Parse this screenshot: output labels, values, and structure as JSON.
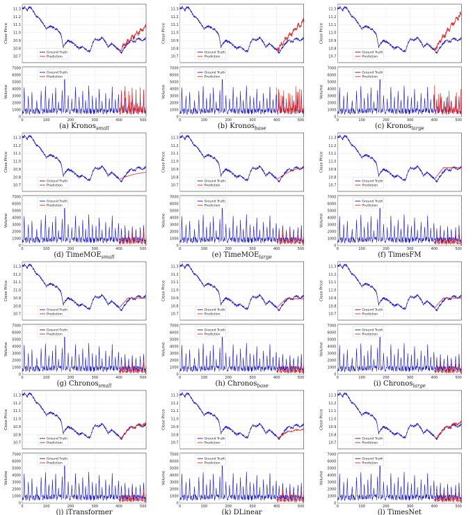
{
  "chart_data": {
    "type": "line",
    "xlim": [
      0,
      512
    ],
    "x_ticks": [
      0,
      100,
      200,
      300,
      400,
      500
    ],
    "prediction_start": 400,
    "price_panel": {
      "ylabel": "Close Price",
      "yticks": [
        10.7,
        10.8,
        10.9,
        11.0,
        11.1,
        11.2,
        11.3
      ],
      "ylim": [
        10.62,
        11.36
      ],
      "legend": [
        "Ground Truth",
        "Prediction"
      ],
      "ground_truth_keypoints": [
        [
          0,
          11.3
        ],
        [
          10,
          11.32
        ],
        [
          20,
          11.28
        ],
        [
          30,
          11.33
        ],
        [
          40,
          11.3
        ],
        [
          55,
          11.22
        ],
        [
          70,
          11.18
        ],
        [
          85,
          11.12
        ],
        [
          100,
          11.05
        ],
        [
          115,
          11.08
        ],
        [
          130,
          11.06
        ],
        [
          145,
          11.04
        ],
        [
          160,
          10.98
        ],
        [
          170,
          10.82
        ],
        [
          180,
          10.87
        ],
        [
          190,
          10.9
        ],
        [
          205,
          10.88
        ],
        [
          220,
          10.84
        ],
        [
          235,
          10.8
        ],
        [
          250,
          10.82
        ],
        [
          265,
          10.78
        ],
        [
          280,
          10.76
        ],
        [
          290,
          10.86
        ],
        [
          300,
          10.92
        ],
        [
          315,
          10.9
        ],
        [
          330,
          10.94
        ],
        [
          345,
          10.88
        ],
        [
          355,
          10.82
        ],
        [
          370,
          10.86
        ],
        [
          385,
          10.82
        ],
        [
          400,
          10.78
        ],
        [
          410,
          10.74
        ],
        [
          420,
          10.8
        ],
        [
          435,
          10.86
        ],
        [
          450,
          10.9
        ],
        [
          465,
          10.88
        ],
        [
          480,
          10.93
        ],
        [
          495,
          10.9
        ],
        [
          512,
          10.93
        ]
      ]
    },
    "volume_panel": {
      "ylabel": "Volume",
      "yticks": [
        0,
        1000,
        2000,
        3000,
        4000,
        5000,
        6000,
        7000
      ],
      "ylim": [
        0,
        7200
      ],
      "legend": [
        "Ground Truth",
        "Prediction"
      ],
      "spike_positions": [
        8,
        25,
        40,
        60,
        78,
        96,
        110,
        125,
        138,
        150,
        165,
        175,
        190,
        205,
        220,
        235,
        250,
        262,
        275,
        290,
        305,
        318,
        330,
        345,
        360,
        372,
        385,
        398,
        410,
        425,
        440,
        455,
        470,
        488,
        502
      ],
      "spike_heights": [
        4200,
        3000,
        3500,
        2500,
        3800,
        4400,
        2800,
        3300,
        4100,
        2200,
        3900,
        6700,
        3100,
        2600,
        4400,
        2900,
        3600,
        2400,
        4600,
        3000,
        2700,
        3900,
        2200,
        3500,
        2800,
        4200,
        2600,
        3300,
        2400,
        3000,
        2200,
        2800,
        2500,
        2700,
        2900
      ],
      "baseline": 1000
    },
    "models": [
      {
        "name_base": "Kronos",
        "name_sub": "small",
        "id": "a",
        "price_pred_end": 11.08,
        "pred_shape": "up-volatile",
        "volume_pred_scale": 1.2
      },
      {
        "name_base": "Kronos",
        "name_sub": "base",
        "id": "b",
        "price_pred_end": 11.15,
        "pred_shape": "up-volatile",
        "volume_pred_scale": 1.1
      },
      {
        "name_base": "Kronos",
        "name_sub": "large",
        "id": "c",
        "price_pred_end": 11.25,
        "pred_shape": "up-volatile",
        "volume_pred_scale": 1.0
      },
      {
        "name_base": "TimeMOE",
        "name_sub": "small",
        "id": "d",
        "price_pred_end": 10.86,
        "pred_shape": "smooth",
        "volume_pred_scale": 0.6
      },
      {
        "name_base": "TimeMOE",
        "name_sub": "large",
        "id": "e",
        "price_pred_end": 10.92,
        "pred_shape": "smooth",
        "volume_pred_scale": 0.6
      },
      {
        "name_base": "TimesFM",
        "name_sub": "",
        "id": "f",
        "price_pred_end": 10.92,
        "pred_shape": "flat",
        "volume_pred_scale": 0.5
      },
      {
        "name_base": "Chronos",
        "name_sub": "small",
        "id": "g",
        "price_pred_end": 10.9,
        "pred_shape": "flat",
        "volume_pred_scale": 0.5
      },
      {
        "name_base": "Chronos",
        "name_sub": "base",
        "id": "h",
        "price_pred_end": 10.89,
        "pred_shape": "flat",
        "volume_pred_scale": 0.5
      },
      {
        "name_base": "Chronos",
        "name_sub": "large",
        "id": "i",
        "price_pred_end": 10.9,
        "pred_shape": "flat",
        "volume_pred_scale": 0.5
      },
      {
        "name_base": "iTransformer",
        "name_sub": "",
        "id": "j",
        "price_pred_end": 11.0,
        "pred_shape": "follow",
        "volume_pred_scale": 0.5
      },
      {
        "name_base": "DLinear",
        "name_sub": "",
        "id": "k",
        "price_pred_end": 10.84,
        "pred_shape": "follow-low",
        "volume_pred_scale": 0.5
      },
      {
        "name_base": "TimesNet",
        "name_sub": "",
        "id": "l",
        "price_pred_end": 11.05,
        "pred_shape": "follow",
        "volume_pred_scale": 0.5
      }
    ]
  },
  "colors": {
    "ground_truth": "#1515c8",
    "prediction": "#e02020",
    "grid": "#e4e4e4",
    "axis": "#333333"
  }
}
